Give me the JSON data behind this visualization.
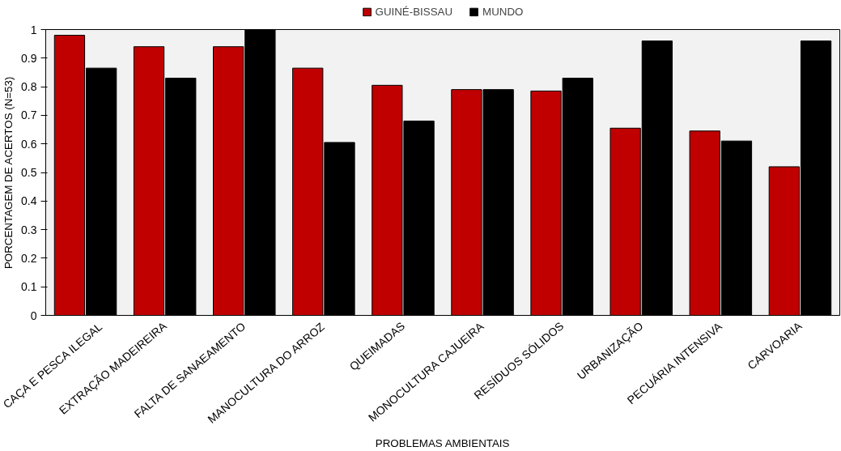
{
  "chart_data": {
    "type": "bar",
    "xlabel": "PROBLEMAS AMBIENTAIS",
    "ylabel": "PORCENTAGEM DE ACERTOS (N=53)",
    "categories": [
      "CAÇA E PESCA ILEGAL",
      "EXTRAÇÃO MADEIREIRA",
      "FALTA DE SANAEAMENTO",
      "MANOCULTURA DO ARROZ",
      "QUEIMADAS",
      "MONOCULTURA CAJUEIRA",
      "RESÍDUOS SÓLIDOS",
      "URBANIZAÇÃO",
      "PECUÁRIA INTENSIVA",
      "CARVOARIA"
    ],
    "series": [
      {
        "name": "GUINÉ-BISSAU",
        "color": "#c00000",
        "values": [
          0.98,
          0.94,
          0.94,
          0.865,
          0.805,
          0.79,
          0.785,
          0.655,
          0.645,
          0.52
        ]
      },
      {
        "name": "MUNDO",
        "color": "#000000",
        "values": [
          0.865,
          0.83,
          1.0,
          0.605,
          0.68,
          0.79,
          0.83,
          0.96,
          0.61,
          0.96
        ]
      }
    ],
    "ylim": [
      0,
      1
    ],
    "yticks": [
      0,
      0.1,
      0.2,
      0.3,
      0.4,
      0.5,
      0.6,
      0.7,
      0.8,
      0.9,
      1
    ],
    "grid": false,
    "legend": "top"
  }
}
